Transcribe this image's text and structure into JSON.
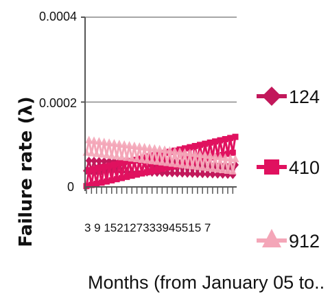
{
  "chart_data": {
    "type": "line",
    "title": "",
    "ylabel": "Failure rate (λ)",
    "xlabel": "Months (from January 05 to..",
    "ylim": [
      0,
      0.0004
    ],
    "yticks": [
      "0",
      "0.0002",
      "0.0004"
    ],
    "x_tick_labels": [
      "3",
      "9",
      "152127333945",
      "5157"
    ],
    "x_tick_text": "3  9 152127333945515 7",
    "x_months": [
      1,
      60
    ],
    "grid": true,
    "legend_position": "right",
    "series": [
      {
        "name": "124",
        "color": "#c2185b",
        "marker": "diamond",
        "start": 5e-05,
        "end": 4e-05,
        "amp": 1.2e-05
      },
      {
        "name": "410",
        "color": "#e0115f",
        "marker": "square",
        "start": 2e-05,
        "end": 0.0001,
        "amp": 1.8e-05
      },
      {
        "name": "912",
        "color": "#f4a6b8",
        "marker": "triangle",
        "start": 9.5e-05,
        "end": 5e-05,
        "amp": 1.5e-05
      }
    ]
  }
}
